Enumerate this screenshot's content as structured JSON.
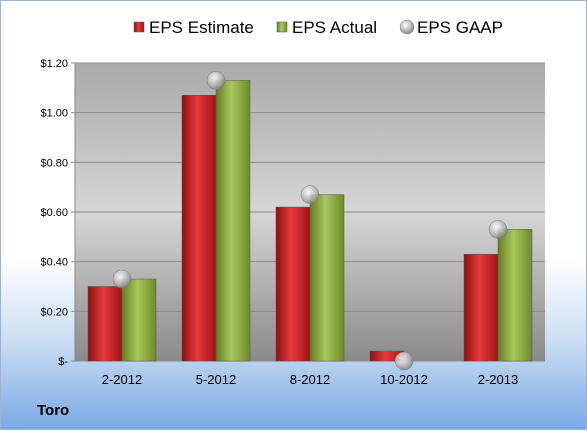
{
  "company": "Toro",
  "chart_data": {
    "type": "bar",
    "categories": [
      "2-2012",
      "5-2012",
      "8-2012",
      "10-2012",
      "2-2013"
    ],
    "series": [
      {
        "name": "EPS Estimate",
        "kind": "bar",
        "color": "#cc1f1f",
        "values": [
          0.3,
          1.07,
          0.62,
          0.04,
          0.43
        ]
      },
      {
        "name": "EPS Actual",
        "kind": "bar",
        "color": "#8fae3e",
        "values": [
          0.33,
          1.13,
          0.67,
          null,
          0.53
        ]
      },
      {
        "name": "EPS GAAP",
        "kind": "marker",
        "color": "#b8b8b8",
        "values": [
          0.33,
          1.13,
          0.67,
          0.0,
          0.53
        ]
      }
    ],
    "yticks": [
      {
        "value": 0.0,
        "label": "$-"
      },
      {
        "value": 0.2,
        "label": "$0.20"
      },
      {
        "value": 0.4,
        "label": "$0.40"
      },
      {
        "value": 0.6,
        "label": "$0.60"
      },
      {
        "value": 0.8,
        "label": "$0.80"
      },
      {
        "value": 1.0,
        "label": "$1.00"
      },
      {
        "value": 1.2,
        "label": "$1.20"
      }
    ],
    "ylim": [
      0,
      1.2
    ],
    "grid": true,
    "legend_position": "top"
  }
}
